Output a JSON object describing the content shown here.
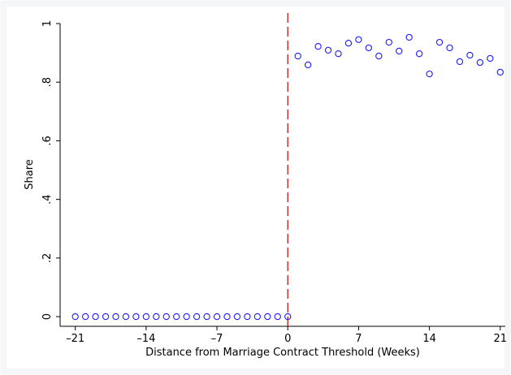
{
  "chart_data": {
    "type": "scatter",
    "x_label": "Distance from Marriage Contract Threshold (Weeks)",
    "y_label": "Share",
    "x": [
      -21,
      -20,
      -19,
      -18,
      -17,
      -16,
      -15,
      -14,
      -13,
      -12,
      -11,
      -10,
      -9,
      -8,
      -7,
      -6,
      -5,
      -4,
      -3,
      -2,
      -1,
      0,
      1,
      2,
      3,
      4,
      5,
      6,
      7,
      8,
      9,
      10,
      11,
      12,
      13,
      14,
      15,
      16,
      17,
      18,
      19,
      20,
      21
    ],
    "values": [
      0,
      0,
      0,
      0,
      0,
      0,
      0,
      0,
      0,
      0,
      0,
      0,
      0,
      0,
      0,
      0,
      0,
      0,
      0,
      0,
      0,
      0,
      0.889,
      0.859,
      0.922,
      0.909,
      0.897,
      0.933,
      0.945,
      0.917,
      0.889,
      0.936,
      0.906,
      0.953,
      0.897,
      0.828,
      0.936,
      0.917,
      0.87,
      0.892,
      0.867,
      0.881,
      0.834
    ],
    "color": "#1a1aff",
    "xline": 0,
    "xline_color": "#cc0000",
    "xlim": [
      -22.5,
      21.5
    ],
    "ylim": [
      -0.033,
      1
    ],
    "xticks": [
      {
        "value": -21,
        "label": "–21"
      },
      {
        "value": -14,
        "label": "–14"
      },
      {
        "value": -7,
        "label": "–7"
      },
      0,
      7,
      14,
      21
    ],
    "yticks": [
      0,
      {
        "value": 0.2,
        "label": ".2"
      },
      {
        "value": 0.4,
        "label": ".4"
      },
      {
        "value": 0.6,
        "label": ".6"
      },
      {
        "value": 0.8,
        "label": ".8"
      },
      1
    ]
  }
}
